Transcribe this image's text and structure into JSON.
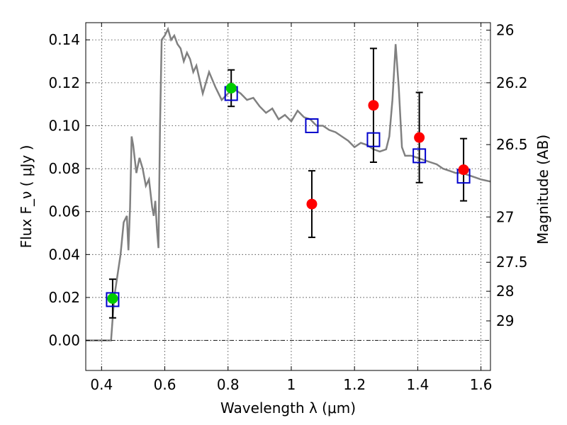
{
  "chart_data": {
    "type": "scatter",
    "title": "",
    "xlabel": "Wavelength  λ (μm)",
    "ylabel": "Flux  F_ν  ( μJy )",
    "ylabel_right": "Magnitude (AB)",
    "xlim": [
      0.35,
      1.63
    ],
    "ylim": [
      -0.014,
      0.148
    ],
    "grid": true,
    "x_ticks": [
      0.4,
      0.6,
      0.8,
      1.0,
      1.2,
      1.4,
      1.6
    ],
    "x_tick_labels": [
      "0.4",
      "0.6",
      "0.8",
      "1",
      "1.2",
      "1.4",
      "1.6"
    ],
    "y_ticks": [
      0.0,
      0.02,
      0.04,
      0.06,
      0.08,
      0.1,
      0.12,
      0.14
    ],
    "y_tick_labels": [
      "0.00",
      "0.02",
      "0.04",
      "0.06",
      "0.08",
      "0.10",
      "0.12",
      "0.14"
    ],
    "right_ticks": [
      {
        "label": "26",
        "flux": 0.1445
      },
      {
        "label": "26.2",
        "flux": 0.12
      },
      {
        "label": "26.5",
        "flux": 0.0912
      },
      {
        "label": "27",
        "flux": 0.0575
      },
      {
        "label": "27.5",
        "flux": 0.0364
      },
      {
        "label": "28",
        "flux": 0.0229
      },
      {
        "label": "29",
        "flux": 0.0091
      }
    ],
    "model_spectrum": {
      "color": "#808080",
      "x": [
        0.35,
        0.43,
        0.44,
        0.46,
        0.47,
        0.48,
        0.485,
        0.49,
        0.495,
        0.5,
        0.51,
        0.52,
        0.53,
        0.54,
        0.55,
        0.56,
        0.565,
        0.57,
        0.575,
        0.58,
        0.585,
        0.59,
        0.6,
        0.61,
        0.62,
        0.63,
        0.64,
        0.65,
        0.66,
        0.67,
        0.68,
        0.69,
        0.7,
        0.72,
        0.74,
        0.76,
        0.78,
        0.8,
        0.82,
        0.84,
        0.86,
        0.88,
        0.9,
        0.92,
        0.94,
        0.96,
        0.98,
        1.0,
        1.02,
        1.04,
        1.06,
        1.08,
        1.1,
        1.12,
        1.14,
        1.16,
        1.18,
        1.2,
        1.22,
        1.24,
        1.26,
        1.28,
        1.3,
        1.31,
        1.32,
        1.33,
        1.34,
        1.35,
        1.36,
        1.38,
        1.4,
        1.42,
        1.44,
        1.46,
        1.48,
        1.5,
        1.52,
        1.54,
        1.56,
        1.58,
        1.6,
        1.63
      ],
      "y": [
        0.0,
        0.0,
        0.02,
        0.04,
        0.055,
        0.058,
        0.042,
        0.062,
        0.095,
        0.091,
        0.078,
        0.085,
        0.08,
        0.072,
        0.075,
        0.062,
        0.058,
        0.065,
        0.052,
        0.043,
        0.1,
        0.14,
        0.142,
        0.145,
        0.14,
        0.142,
        0.138,
        0.136,
        0.13,
        0.134,
        0.131,
        0.125,
        0.128,
        0.115,
        0.125,
        0.118,
        0.112,
        0.115,
        0.117,
        0.115,
        0.112,
        0.113,
        0.109,
        0.106,
        0.108,
        0.103,
        0.105,
        0.102,
        0.107,
        0.104,
        0.103,
        0.1,
        0.1,
        0.098,
        0.097,
        0.095,
        0.093,
        0.09,
        0.092,
        0.091,
        0.089,
        0.088,
        0.089,
        0.095,
        0.112,
        0.138,
        0.118,
        0.09,
        0.086,
        0.086,
        0.085,
        0.084,
        0.083,
        0.082,
        0.08,
        0.079,
        0.078,
        0.078,
        0.077,
        0.076,
        0.075,
        0.074
      ]
    },
    "series": [
      {
        "name": "",
        "marker": "circle",
        "color": "#00cc00",
        "x": [
          0.435,
          0.81
        ],
        "y": [
          0.0195,
          0.1175
        ],
        "err": [
          0.009,
          0.0085
        ]
      },
      {
        "name": "",
        "marker": "circle",
        "color": "#ff0000",
        "x": [
          1.065,
          1.26,
          1.405,
          1.545
        ],
        "y": [
          0.0635,
          0.1095,
          0.0945,
          0.0795
        ],
        "err": [
          0.0155,
          0.0265,
          0.021,
          0.0145
        ]
      },
      {
        "name": "",
        "marker": "square",
        "color": "#0000cc",
        "x": [
          0.435,
          0.81,
          1.065,
          1.26,
          1.405,
          1.545
        ],
        "y": [
          0.019,
          0.115,
          0.1,
          0.0935,
          0.086,
          0.0765
        ],
        "err": []
      }
    ]
  }
}
